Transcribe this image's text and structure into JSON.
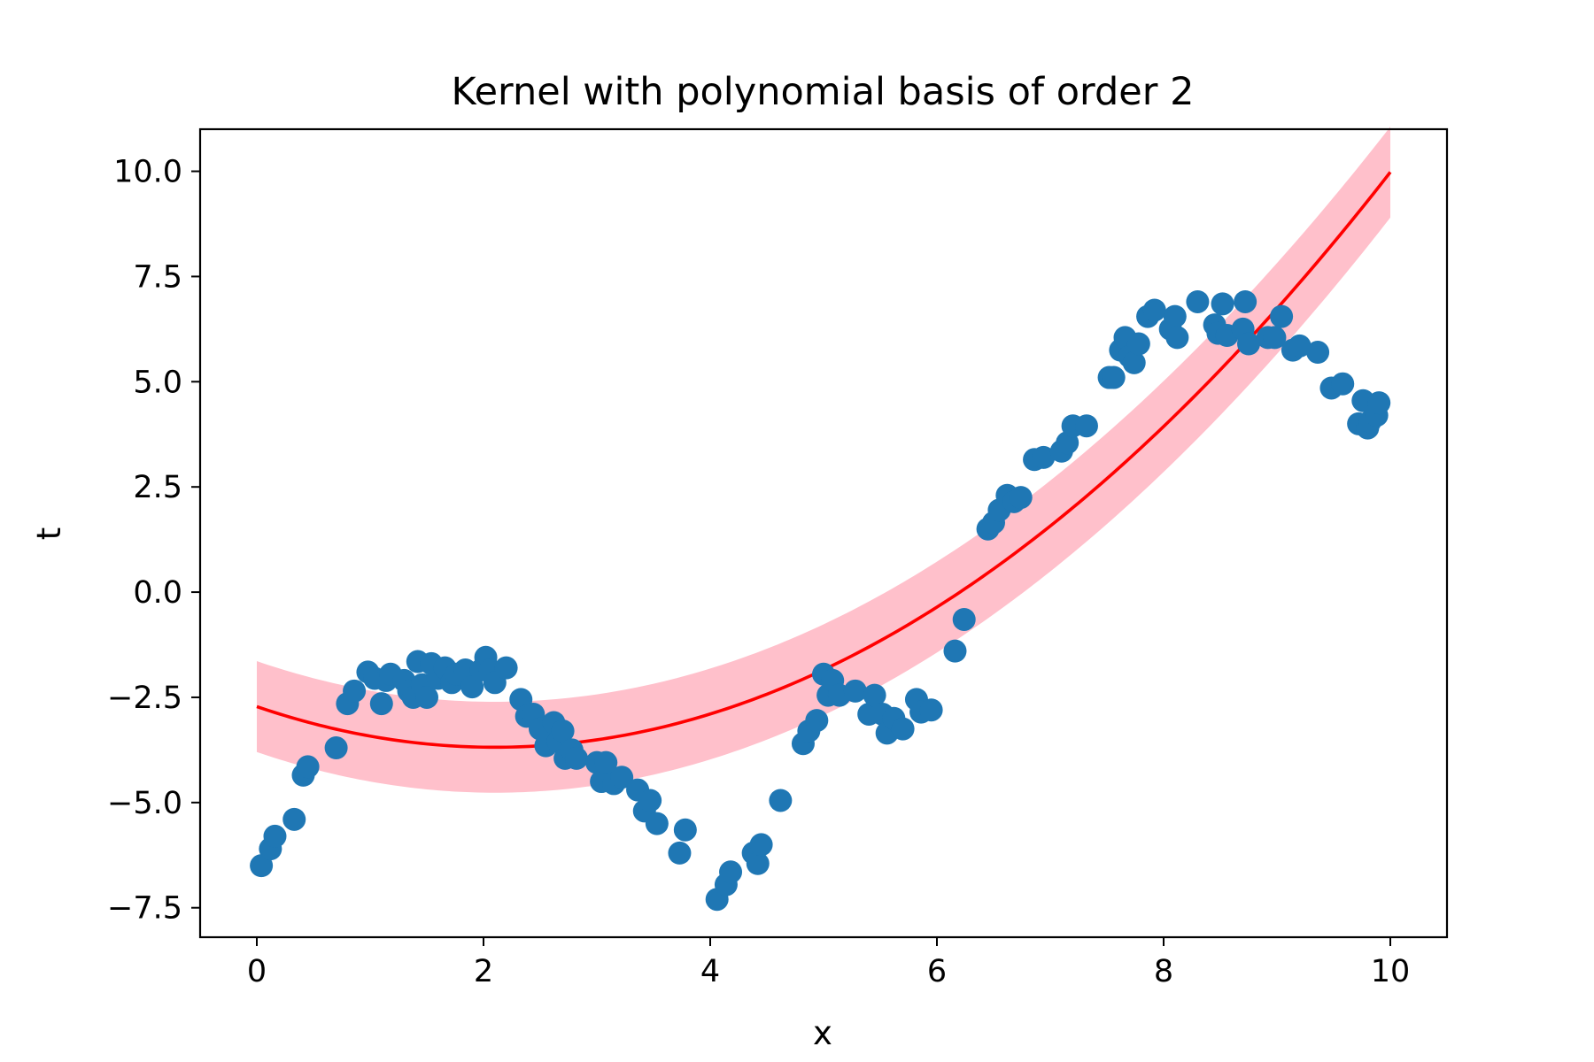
{
  "chart_data": {
    "type": "scatter",
    "title": "Kernel with polynomial basis of order 2",
    "xlabel": "x",
    "ylabel": "t",
    "xlim": [
      -0.5,
      10.5
    ],
    "ylim": [
      -8.2,
      11.0
    ],
    "xticks": [
      0,
      2,
      4,
      6,
      8,
      10
    ],
    "yticks": [
      10.0,
      7.5,
      5.0,
      2.5,
      0.0,
      -2.5,
      -5.0,
      -7.5
    ],
    "xtick_labels": [
      "0",
      "2",
      "4",
      "6",
      "8",
      "10"
    ],
    "ytick_labels": [
      "10.0",
      "7.5",
      "5.0",
      "2.5",
      "0.0",
      "−2.5",
      "−5.0",
      "−7.5"
    ],
    "grid": false,
    "colors": {
      "points": "#1f77b4",
      "fit_line": "#ff0000",
      "band": "#ffc0cb"
    },
    "series": [
      {
        "kind": "scatter",
        "points": [
          [
            0.04,
            -6.5
          ],
          [
            0.12,
            -6.1
          ],
          [
            0.16,
            -5.8
          ],
          [
            0.33,
            -5.4
          ],
          [
            0.41,
            -4.35
          ],
          [
            0.45,
            -4.15
          ],
          [
            0.7,
            -3.7
          ],
          [
            0.8,
            -2.65
          ],
          [
            0.86,
            -2.35
          ],
          [
            0.98,
            -1.9
          ],
          [
            1.04,
            -2.05
          ],
          [
            1.1,
            -2.65
          ],
          [
            1.14,
            -2.1
          ],
          [
            1.18,
            -1.95
          ],
          [
            1.3,
            -2.1
          ],
          [
            1.34,
            -2.35
          ],
          [
            1.38,
            -2.5
          ],
          [
            1.42,
            -1.65
          ],
          [
            1.46,
            -2.2
          ],
          [
            1.5,
            -2.5
          ],
          [
            1.54,
            -1.7
          ],
          [
            1.6,
            -2.05
          ],
          [
            1.66,
            -1.8
          ],
          [
            1.72,
            -2.15
          ],
          [
            1.76,
            -1.95
          ],
          [
            1.84,
            -1.85
          ],
          [
            1.9,
            -2.25
          ],
          [
            1.98,
            -1.85
          ],
          [
            2.02,
            -1.55
          ],
          [
            2.06,
            -1.85
          ],
          [
            2.1,
            -2.15
          ],
          [
            2.2,
            -1.8
          ],
          [
            2.33,
            -2.55
          ],
          [
            2.38,
            -2.95
          ],
          [
            2.44,
            -2.9
          ],
          [
            2.5,
            -3.25
          ],
          [
            2.55,
            -3.65
          ],
          [
            2.58,
            -3.35
          ],
          [
            2.62,
            -3.1
          ],
          [
            2.66,
            -3.55
          ],
          [
            2.7,
            -3.3
          ],
          [
            2.72,
            -3.95
          ],
          [
            2.78,
            -3.75
          ],
          [
            2.82,
            -3.95
          ],
          [
            3.0,
            -4.05
          ],
          [
            3.04,
            -4.5
          ],
          [
            3.08,
            -4.05
          ],
          [
            3.15,
            -4.55
          ],
          [
            3.22,
            -4.4
          ],
          [
            3.36,
            -4.7
          ],
          [
            3.42,
            -5.2
          ],
          [
            3.47,
            -4.95
          ],
          [
            3.53,
            -5.5
          ],
          [
            3.73,
            -6.2
          ],
          [
            3.78,
            -5.65
          ],
          [
            4.06,
            -7.3
          ],
          [
            4.14,
            -6.95
          ],
          [
            4.18,
            -6.65
          ],
          [
            4.38,
            -6.2
          ],
          [
            4.42,
            -6.45
          ],
          [
            4.45,
            -6.0
          ],
          [
            4.62,
            -4.95
          ],
          [
            4.82,
            -3.6
          ],
          [
            4.87,
            -3.3
          ],
          [
            4.94,
            -3.05
          ],
          [
            5.0,
            -1.95
          ],
          [
            5.04,
            -2.45
          ],
          [
            5.08,
            -2.1
          ],
          [
            5.14,
            -2.45
          ],
          [
            5.28,
            -2.35
          ],
          [
            5.4,
            -2.9
          ],
          [
            5.45,
            -2.45
          ],
          [
            5.52,
            -2.9
          ],
          [
            5.56,
            -3.35
          ],
          [
            5.62,
            -3.0
          ],
          [
            5.7,
            -3.25
          ],
          [
            5.82,
            -2.55
          ],
          [
            5.86,
            -2.85
          ],
          [
            5.95,
            -2.8
          ],
          [
            6.16,
            -1.4
          ],
          [
            6.24,
            -0.65
          ],
          [
            6.45,
            1.5
          ],
          [
            6.5,
            1.65
          ],
          [
            6.55,
            1.95
          ],
          [
            6.62,
            2.3
          ],
          [
            6.68,
            2.15
          ],
          [
            6.74,
            2.25
          ],
          [
            6.86,
            3.15
          ],
          [
            6.94,
            3.2
          ],
          [
            7.1,
            3.35
          ],
          [
            7.15,
            3.55
          ],
          [
            7.2,
            3.95
          ],
          [
            7.32,
            3.95
          ],
          [
            7.52,
            5.1
          ],
          [
            7.56,
            5.1
          ],
          [
            7.62,
            5.75
          ],
          [
            7.66,
            6.05
          ],
          [
            7.7,
            5.6
          ],
          [
            7.74,
            5.45
          ],
          [
            7.78,
            5.9
          ],
          [
            7.86,
            6.55
          ],
          [
            7.92,
            6.7
          ],
          [
            8.06,
            6.25
          ],
          [
            8.1,
            6.55
          ],
          [
            8.12,
            6.05
          ],
          [
            8.3,
            6.9
          ],
          [
            8.45,
            6.35
          ],
          [
            8.48,
            6.15
          ],
          [
            8.52,
            6.85
          ],
          [
            8.56,
            6.1
          ],
          [
            8.7,
            6.25
          ],
          [
            8.72,
            6.9
          ],
          [
            8.75,
            5.9
          ],
          [
            8.92,
            6.05
          ],
          [
            8.98,
            6.05
          ],
          [
            9.04,
            6.55
          ],
          [
            9.14,
            5.75
          ],
          [
            9.2,
            5.85
          ],
          [
            9.36,
            5.7
          ],
          [
            9.48,
            4.85
          ],
          [
            9.58,
            4.95
          ],
          [
            9.72,
            4.0
          ],
          [
            9.76,
            4.55
          ],
          [
            9.8,
            3.9
          ],
          [
            9.82,
            4.05
          ],
          [
            9.88,
            4.2
          ],
          [
            9.9,
            4.5
          ]
        ]
      },
      {
        "kind": "line",
        "description": "quadratic fit",
        "coefficients": [
          -2.72,
          -0.92,
          0.219
        ]
      },
      {
        "kind": "band",
        "description": "uncertainty band around fit",
        "half_width": 1.08
      }
    ]
  }
}
